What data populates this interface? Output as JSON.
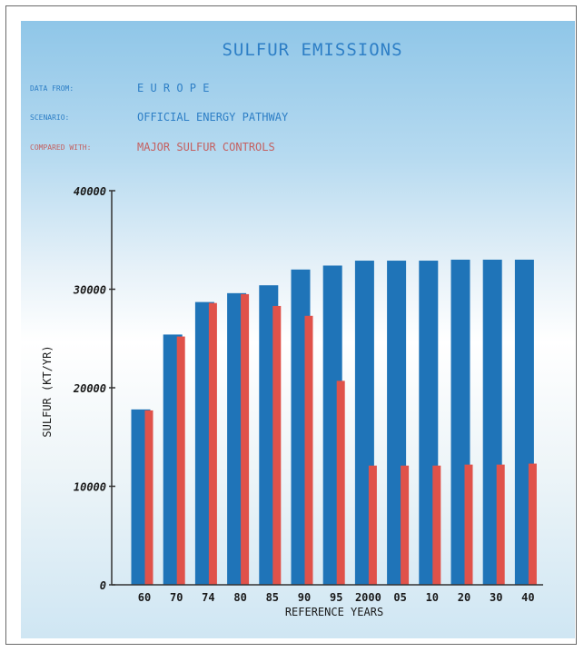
{
  "header": {
    "title": "SULFUR EMISSIONS",
    "rows": [
      {
        "label": "DATA FROM:",
        "value": "E U R O P E",
        "color": "blue"
      },
      {
        "label": "SCENARIO:",
        "value": "OFFICIAL ENERGY PATHWAY",
        "color": "blue"
      },
      {
        "label": "COMPARED WITH:",
        "value": "MAJOR SULFUR CONTROLS",
        "color": "red"
      }
    ]
  },
  "colors": {
    "official": "#1f74b8",
    "controls": "#e0524a",
    "axis": "#333333"
  },
  "chart_data": {
    "type": "bar",
    "title": "SULFUR EMISSIONS",
    "xlabel": "REFERENCE YEARS",
    "ylabel": "SULFUR (KT/YR)",
    "ylim": [
      0,
      40000
    ],
    "yticks": [
      0,
      10000,
      20000,
      30000,
      40000
    ],
    "categories": [
      "60",
      "70",
      "74",
      "80",
      "85",
      "90",
      "95",
      "2000",
      "05",
      "10",
      "20",
      "30",
      "40"
    ],
    "series": [
      {
        "values": [
          17800,
          25400,
          28700,
          29600,
          30400,
          32000,
          32400,
          32900,
          32900,
          32900,
          33000,
          33000,
          33000
        ]
      },
      {
        "values": [
          17700,
          25200,
          28600,
          29500,
          28300,
          27300,
          20700,
          12100,
          12100,
          12100,
          12200,
          12200,
          12300
        ]
      }
    ],
    "grid": false,
    "legend": "none"
  }
}
